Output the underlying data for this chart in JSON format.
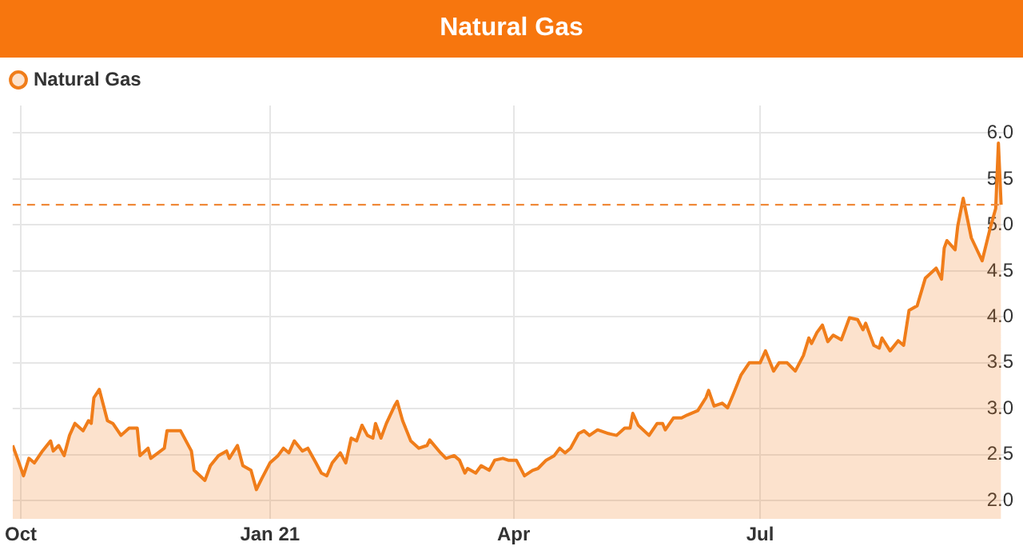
{
  "chart_data": {
    "type": "area",
    "title": "Natural Gas",
    "x": [
      "2020-09-28",
      "2020-09-30",
      "2020-10-02",
      "2020-10-04",
      "2020-10-06",
      "2020-10-09",
      "2020-10-12",
      "2020-10-13",
      "2020-10-15",
      "2020-10-17",
      "2020-10-19",
      "2020-10-21",
      "2020-10-24",
      "2020-10-26",
      "2020-10-27",
      "2020-10-28",
      "2020-10-30",
      "2020-11-02",
      "2020-11-04",
      "2020-11-07",
      "2020-11-10",
      "2020-11-13",
      "2020-11-14",
      "2020-11-17",
      "2020-11-18",
      "2020-11-23",
      "2020-11-24",
      "2020-11-29",
      "2020-12-03",
      "2020-12-04",
      "2020-12-08",
      "2020-12-10",
      "2020-12-13",
      "2020-12-16",
      "2020-12-17",
      "2020-12-20",
      "2020-12-22",
      "2020-12-25",
      "2020-12-27",
      "2020-12-29",
      "2021-01-01",
      "2021-01-04",
      "2021-01-06",
      "2021-01-08",
      "2021-01-10",
      "2021-01-13",
      "2021-01-15",
      "2021-01-18",
      "2021-01-20",
      "2021-01-22",
      "2021-01-24",
      "2021-01-27",
      "2021-01-29",
      "2021-01-31",
      "2021-02-02",
      "2021-02-04",
      "2021-02-06",
      "2021-02-08",
      "2021-02-09",
      "2021-02-11",
      "2021-02-13",
      "2021-02-16",
      "2021-02-17",
      "2021-02-19",
      "2021-02-22",
      "2021-02-25",
      "2021-02-28",
      "2021-03-01",
      "2021-03-05",
      "2021-03-07",
      "2021-03-10",
      "2021-03-12",
      "2021-03-14",
      "2021-03-15",
      "2021-03-18",
      "2021-03-20",
      "2021-03-23",
      "2021-03-25",
      "2021-03-28",
      "2021-03-30",
      "2021-04-02",
      "2021-04-05",
      "2021-04-08",
      "2021-04-10",
      "2021-04-13",
      "2021-04-16",
      "2021-04-18",
      "2021-04-20",
      "2021-04-22",
      "2021-04-25",
      "2021-04-27",
      "2021-04-29",
      "2021-05-02",
      "2021-05-06",
      "2021-05-09",
      "2021-05-12",
      "2021-05-14",
      "2021-05-15",
      "2021-05-17",
      "2021-05-21",
      "2021-05-24",
      "2021-05-26",
      "2021-05-27",
      "2021-05-30",
      "2021-06-02",
      "2021-06-04",
      "2021-06-08",
      "2021-06-11",
      "2021-06-12",
      "2021-06-14",
      "2021-06-17",
      "2021-06-19",
      "2021-06-21",
      "2021-06-24",
      "2021-06-27",
      "2021-07-01",
      "2021-07-03",
      "2021-07-06",
      "2021-07-08",
      "2021-07-11",
      "2021-07-14",
      "2021-07-17",
      "2021-07-19",
      "2021-07-20",
      "2021-07-22",
      "2021-07-24",
      "2021-07-26",
      "2021-07-28",
      "2021-07-31",
      "2021-08-03",
      "2021-08-06",
      "2021-08-08",
      "2021-08-09",
      "2021-08-12",
      "2021-08-14",
      "2021-08-15",
      "2021-08-18",
      "2021-08-21",
      "2021-08-23",
      "2021-08-25",
      "2021-08-28",
      "2021-08-31",
      "2021-09-04",
      "2021-09-06",
      "2021-09-07",
      "2021-09-08",
      "2021-09-11",
      "2021-09-12",
      "2021-09-14",
      "2021-09-17",
      "2021-09-21",
      "2021-09-24",
      "2021-09-26",
      "2021-09-27",
      "2021-09-28"
    ],
    "series": [
      {
        "name": "Natural Gas",
        "color": "#f07d1a",
        "values": [
          2.6,
          2.44,
          2.27,
          2.46,
          2.41,
          2.54,
          2.65,
          2.54,
          2.6,
          2.49,
          2.71,
          2.84,
          2.76,
          2.87,
          2.84,
          3.12,
          3.21,
          2.87,
          2.84,
          2.71,
          2.79,
          2.79,
          2.49,
          2.57,
          2.46,
          2.57,
          2.76,
          2.76,
          2.54,
          2.33,
          2.22,
          2.38,
          2.49,
          2.54,
          2.46,
          2.6,
          2.38,
          2.33,
          2.12,
          2.24,
          2.41,
          2.49,
          2.57,
          2.52,
          2.65,
          2.54,
          2.57,
          2.41,
          2.3,
          2.27,
          2.41,
          2.52,
          2.41,
          2.68,
          2.65,
          2.82,
          2.71,
          2.68,
          2.84,
          2.68,
          2.84,
          3.03,
          3.08,
          2.87,
          2.65,
          2.57,
          2.6,
          2.66,
          2.52,
          2.46,
          2.49,
          2.44,
          2.3,
          2.35,
          2.3,
          2.38,
          2.33,
          2.44,
          2.46,
          2.44,
          2.44,
          2.27,
          2.33,
          2.35,
          2.44,
          2.49,
          2.57,
          2.52,
          2.57,
          2.73,
          2.76,
          2.71,
          2.77,
          2.73,
          2.71,
          2.79,
          2.79,
          2.95,
          2.82,
          2.71,
          2.84,
          2.84,
          2.77,
          2.9,
          2.9,
          2.93,
          2.98,
          3.12,
          3.2,
          3.03,
          3.06,
          3.01,
          3.15,
          3.37,
          3.5,
          3.5,
          3.63,
          3.41,
          3.5,
          3.5,
          3.41,
          3.58,
          3.77,
          3.71,
          3.83,
          3.91,
          3.73,
          3.8,
          3.75,
          3.99,
          3.97,
          3.86,
          3.93,
          3.69,
          3.66,
          3.77,
          3.63,
          3.74,
          3.69,
          4.07,
          4.12,
          4.42,
          4.53,
          4.41,
          4.75,
          4.83,
          4.73,
          4.99,
          5.29,
          4.86,
          4.61,
          4.97,
          5.18,
          5.89,
          5.22
        ]
      }
    ],
    "xlim": [
      "2020-09-28",
      "2021-09-29"
    ],
    "xticks": [
      {
        "value": "2020-10-01",
        "label": "Oct"
      },
      {
        "value": "2021-01-01",
        "label": "Jan 21"
      },
      {
        "value": "2021-04-01",
        "label": "Apr"
      },
      {
        "value": "2021-07-01",
        "label": "Jul"
      }
    ],
    "ylim": [
      1.8,
      6.3
    ],
    "yticks": [
      {
        "value": 2,
        "label": "2.0"
      },
      {
        "value": 2.5,
        "label": "2.5"
      },
      {
        "value": 3,
        "label": "3.0"
      },
      {
        "value": 3.5,
        "label": "3.5"
      },
      {
        "value": 4,
        "label": "4.0"
      },
      {
        "value": 4.5,
        "label": "4.5"
      },
      {
        "value": 5,
        "label": "5.0"
      },
      {
        "value": 5.5,
        "label": "5.5"
      },
      {
        "value": 6,
        "label": "6.0"
      }
    ],
    "ref_lines": [
      {
        "axis": "y",
        "value": 5.22,
        "color": "#f08a3a",
        "line_style": "dashed"
      }
    ],
    "grid": true,
    "legend": "top left",
    "marker": "none",
    "line_style": "solid"
  }
}
